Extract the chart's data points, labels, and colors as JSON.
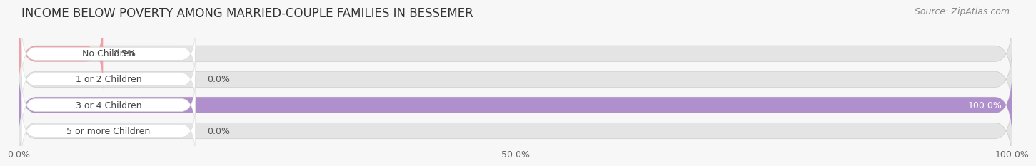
{
  "title": "INCOME BELOW POVERTY AMONG MARRIED-COUPLE FAMILIES IN BESSEMER",
  "source": "Source: ZipAtlas.com",
  "categories": [
    "No Children",
    "1 or 2 Children",
    "3 or 4 Children",
    "5 or more Children"
  ],
  "values": [
    8.5,
    0.0,
    100.0,
    0.0
  ],
  "bar_colors": [
    "#f0a0a8",
    "#a8c0e8",
    "#b090cc",
    "#70c8c8"
  ],
  "xlim": [
    0,
    100
  ],
  "xticks": [
    0.0,
    50.0,
    100.0
  ],
  "xtick_labels": [
    "0.0%",
    "50.0%",
    "100.0%"
  ],
  "bar_height": 0.62,
  "background_color": "#f7f7f7",
  "bar_bg_color": "#e4e4e4",
  "title_fontsize": 12,
  "source_fontsize": 9,
  "label_fontsize": 9,
  "value_fontsize": 9,
  "tick_fontsize": 9
}
